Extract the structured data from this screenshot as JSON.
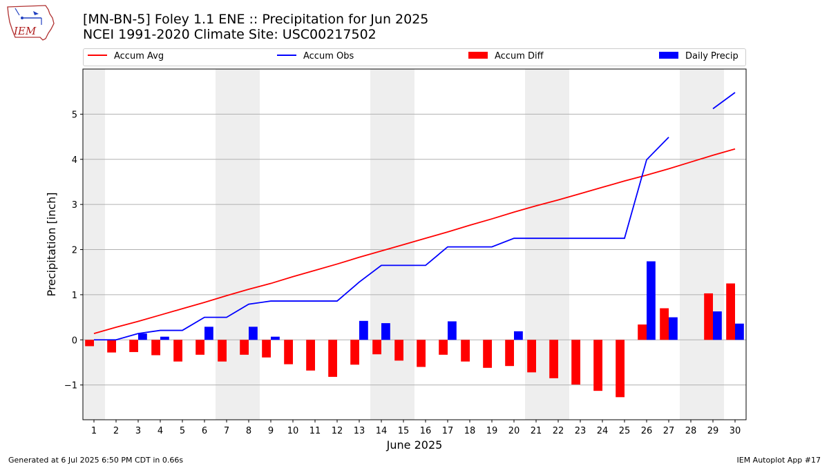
{
  "logo": {
    "text": "IEM",
    "icon": "iowa-state-outline-icon"
  },
  "header": {
    "title_line1": "[MN-BN-5] Foley 1.1 ENE :: Precipitation for Jun 2025",
    "title_line2": "NCEI 1991-2020 Climate Site: USC00217502"
  },
  "legend": {
    "accum_avg": "Accum Avg",
    "accum_obs": "Accum Obs",
    "accum_diff": "Accum Diff",
    "daily_precip": "Daily Precip"
  },
  "footer": {
    "left": "Generated at 6 Jul 2025 6:50 PM CDT in 0.66s",
    "right": "IEM Autoplot App #17"
  },
  "colors": {
    "accum_avg": "#ff0000",
    "accum_obs": "#0000ff",
    "accum_diff": "#ff0000",
    "daily_precip": "#0000ff",
    "weekend_shade": "#eeeeee",
    "grid": "#b0b0b0"
  },
  "chart_data": {
    "type": "bar",
    "xlabel": "June 2025",
    "ylabel": "Precipitation [inch]",
    "xlim": [
      0.5,
      30.5
    ],
    "ylim": [
      -1.77,
      6.0
    ],
    "yticks": [
      -1,
      0,
      1,
      2,
      3,
      4,
      5
    ],
    "ytick_labels": [
      "−1",
      "0",
      "1",
      "2",
      "3",
      "4",
      "5"
    ],
    "grid": "horizontal",
    "legend_placement": "top",
    "x": [
      1,
      2,
      3,
      4,
      5,
      6,
      7,
      8,
      9,
      10,
      11,
      12,
      13,
      14,
      15,
      16,
      17,
      18,
      19,
      20,
      21,
      22,
      23,
      24,
      25,
      26,
      27,
      28,
      29,
      30
    ],
    "weekend_days": [
      1,
      7,
      8,
      14,
      15,
      21,
      22,
      28,
      29
    ],
    "series": [
      {
        "name": "Accum Avg",
        "kind": "line",
        "values": [
          0.14,
          0.28,
          0.41,
          0.55,
          0.69,
          0.83,
          0.98,
          1.12,
          1.25,
          1.4,
          1.54,
          1.68,
          1.83,
          1.97,
          2.11,
          2.25,
          2.39,
          2.54,
          2.68,
          2.83,
          2.97,
          3.1,
          3.24,
          3.38,
          3.52,
          3.65,
          3.79,
          3.94,
          4.09,
          4.23
        ]
      },
      {
        "name": "Accum Obs",
        "kind": "line",
        "values": [
          0.0,
          0.0,
          0.14,
          0.21,
          0.21,
          0.5,
          0.5,
          0.79,
          0.86,
          0.86,
          0.86,
          0.86,
          1.28,
          1.65,
          1.65,
          1.65,
          2.06,
          2.06,
          2.06,
          2.25,
          2.25,
          2.25,
          2.25,
          2.25,
          2.25,
          3.99,
          4.49,
          null,
          5.12,
          5.48
        ]
      },
      {
        "name": "Accum Diff",
        "kind": "bar",
        "values": [
          -0.14,
          -0.28,
          -0.27,
          -0.34,
          -0.48,
          -0.33,
          -0.48,
          -0.33,
          -0.39,
          -0.54,
          -0.68,
          -0.82,
          -0.55,
          -0.32,
          -0.46,
          -0.6,
          -0.33,
          -0.48,
          -0.62,
          -0.58,
          -0.72,
          -0.85,
          -0.99,
          -1.13,
          -1.27,
          0.34,
          0.7,
          null,
          1.03,
          1.25
        ]
      },
      {
        "name": "Daily Precip",
        "kind": "bar",
        "values": [
          0.0,
          0.0,
          0.14,
          0.07,
          0.0,
          0.29,
          0.0,
          0.29,
          0.07,
          0.0,
          0.0,
          0.0,
          0.42,
          0.37,
          0.0,
          0.0,
          0.41,
          0.0,
          0.0,
          0.19,
          0.0,
          0.0,
          0.0,
          0.0,
          0.0,
          1.74,
          0.5,
          null,
          0.63,
          0.36
        ]
      }
    ]
  }
}
